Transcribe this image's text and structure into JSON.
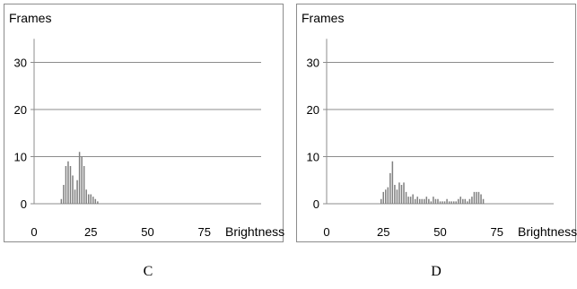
{
  "chart_data": [
    {
      "type": "bar",
      "title": "",
      "ylabel": "Frames",
      "xlabel": "Brightness",
      "panel_label": "C",
      "xlim": [
        0,
        100
      ],
      "ylim": [
        0,
        35
      ],
      "xticks": [
        0,
        25,
        50,
        75
      ],
      "yticks": [
        0,
        10,
        20,
        30
      ],
      "grid": "horizontal",
      "color": "#808080",
      "x": [
        12,
        13,
        14,
        15,
        16,
        17,
        18,
        19,
        20,
        21,
        22,
        23,
        24,
        25,
        26,
        27,
        28
      ],
      "values": [
        1,
        4,
        8,
        9,
        8,
        6,
        3,
        5,
        11,
        10,
        8,
        3,
        2,
        2,
        1.5,
        1,
        0.5
      ]
    },
    {
      "type": "bar",
      "title": "",
      "ylabel": "Frames",
      "xlabel": "Brightness",
      "panel_label": "D",
      "xlim": [
        0,
        100
      ],
      "ylim": [
        0,
        35
      ],
      "xticks": [
        0,
        25,
        50,
        75
      ],
      "yticks": [
        0,
        10,
        20,
        30
      ],
      "grid": "horizontal",
      "color": "#808080",
      "x": [
        24,
        25,
        26,
        27,
        28,
        29,
        30,
        31,
        32,
        33,
        34,
        35,
        36,
        37,
        38,
        39,
        40,
        41,
        42,
        43,
        44,
        45,
        46,
        47,
        48,
        49,
        50,
        51,
        52,
        53,
        54,
        55,
        56,
        57,
        58,
        59,
        60,
        61,
        62,
        63,
        64,
        65,
        66,
        67,
        68,
        69
      ],
      "values": [
        1,
        2.5,
        3,
        3.5,
        6.5,
        9,
        4,
        3,
        4.5,
        4,
        4.5,
        2.5,
        1.5,
        1.5,
        2,
        1,
        1.5,
        1,
        1,
        1,
        1.5,
        1,
        0.5,
        1.5,
        1,
        1,
        0.5,
        0.5,
        0.5,
        1,
        0.5,
        0.5,
        0.5,
        0.5,
        1,
        1.5,
        1,
        1,
        0.5,
        1,
        1.5,
        2.5,
        2.5,
        2.5,
        2,
        1
      ]
    }
  ]
}
